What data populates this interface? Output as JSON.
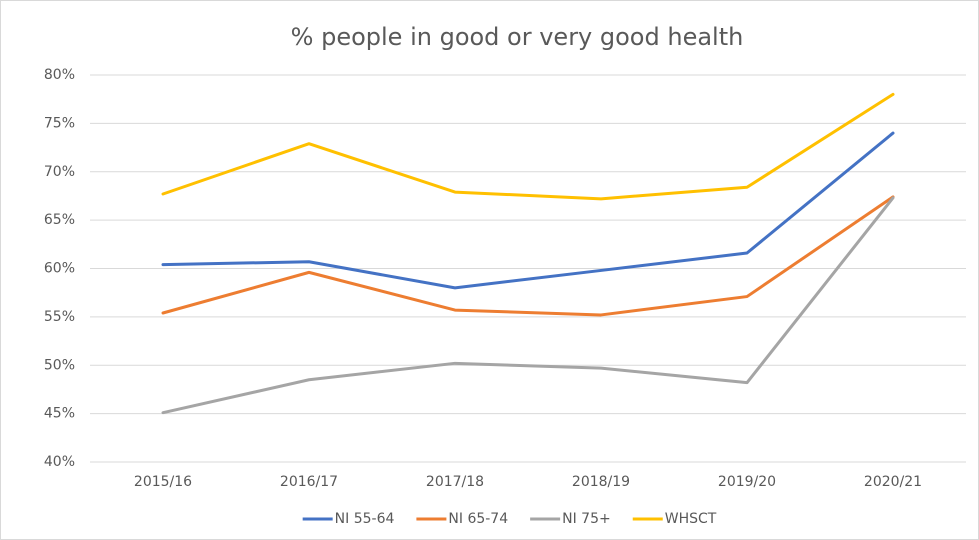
{
  "chart_data": {
    "type": "line",
    "title": "% people in good or very good health",
    "categories": [
      "2015/16",
      "2016/17",
      "2017/18",
      "2018/19",
      "2019/20",
      "2020/21"
    ],
    "series": [
      {
        "name": "NI 55-64",
        "color": "#4472c4",
        "values": [
          60.4,
          60.7,
          58.0,
          59.8,
          61.6,
          74.0
        ]
      },
      {
        "name": "NI 65-74",
        "color": "#ed7d31",
        "values": [
          55.4,
          59.6,
          55.7,
          55.2,
          57.1,
          67.4
        ]
      },
      {
        "name": "NI 75+",
        "color": "#a5a5a5",
        "values": [
          45.1,
          48.5,
          50.2,
          49.7,
          48.2,
          67.3
        ]
      },
      {
        "name": "WHSCT",
        "color": "#ffc000",
        "values": [
          67.7,
          72.9,
          67.9,
          67.2,
          68.4,
          78.0
        ]
      }
    ],
    "ylim": [
      40,
      80
    ],
    "yticks": [
      {
        "value": 40,
        "label": "40%"
      },
      {
        "value": 45,
        "label": "45%"
      },
      {
        "value": 50,
        "label": "50%"
      },
      {
        "value": 55,
        "label": "55%"
      },
      {
        "value": 60,
        "label": "60%"
      },
      {
        "value": 65,
        "label": "65%"
      },
      {
        "value": 70,
        "label": "70%"
      },
      {
        "value": 75,
        "label": "75%"
      },
      {
        "value": 80,
        "label": "80%"
      }
    ],
    "grid": true,
    "legend": "bottom"
  }
}
